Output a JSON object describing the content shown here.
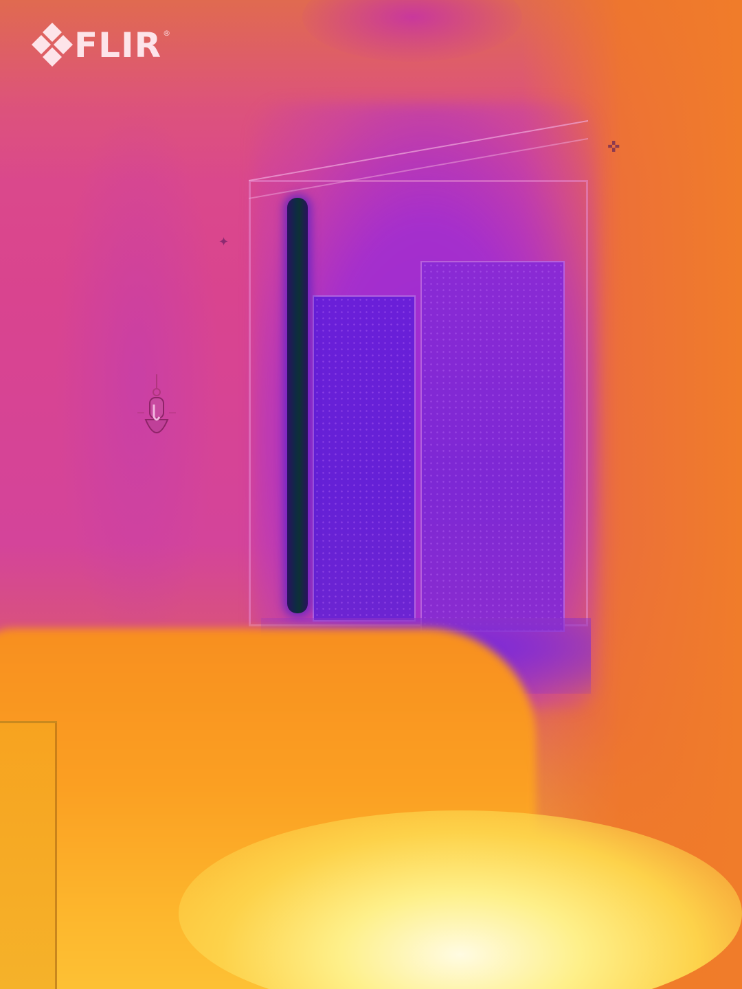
{
  "logo": {
    "brand": "FLIR",
    "registered_mark": "®"
  },
  "palette": {
    "cold": "#6520d6",
    "cool": "#9b2ad6",
    "mid": "#d9448f",
    "warm": "#f07c2a",
    "hot": "#fdc437",
    "hottest": "#fffbe2"
  },
  "icons": {
    "logo_mark": "flir-diamond-icon",
    "wall_ornament": "wall-hanging-icon",
    "wall_hook": "hook-icon"
  }
}
